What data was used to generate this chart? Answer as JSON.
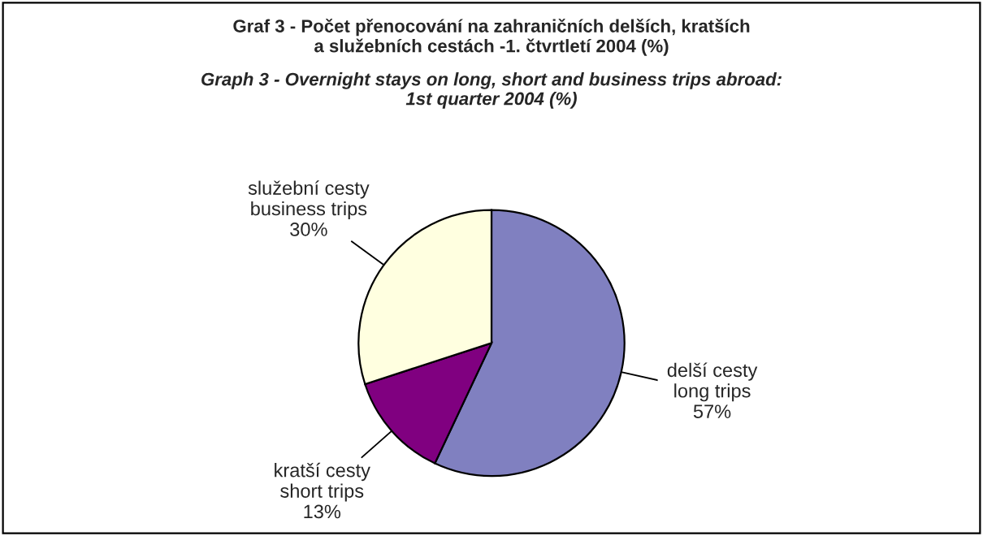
{
  "chart_data": {
    "type": "pie",
    "title": "Graf 3 - Počet přenocování na zahraničních delších, kratších\na služebních cestách -1. čtvrtletí 2004 (%)",
    "subtitle": "Graph 3 - Overnight stays on long, short and business trips abroad:\n1st quarter 2004 (%)",
    "categories": [
      "delší cesty\nlong trips",
      "kratší cesty\nshort trips",
      "služební cesty\nbusiness trips"
    ],
    "values": [
      57,
      13,
      30
    ],
    "colors": [
      "#8080c0",
      "#800080",
      "#ffffe0"
    ],
    "value_labels": [
      "57%",
      "13%",
      "30%"
    ]
  }
}
